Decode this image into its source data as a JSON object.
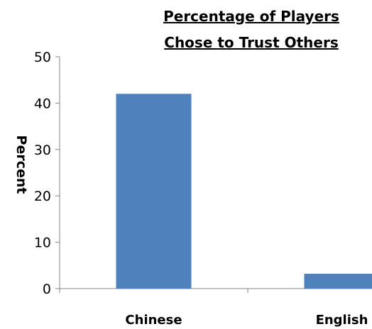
{
  "chart_data": {
    "type": "bar",
    "title_lines": [
      "Percentage of Players",
      "Chose to Trust Others"
    ],
    "ylabel": "Percent",
    "xlabel": "",
    "categories": [
      "Chinese",
      "English"
    ],
    "values": [
      42,
      3.2
    ],
    "ylim": [
      0,
      50
    ],
    "yticks": [
      0,
      10,
      20,
      30,
      40,
      50
    ],
    "grid": false,
    "legend": "none",
    "bar_color": "#4F81BD",
    "axis_color": "#868686"
  }
}
